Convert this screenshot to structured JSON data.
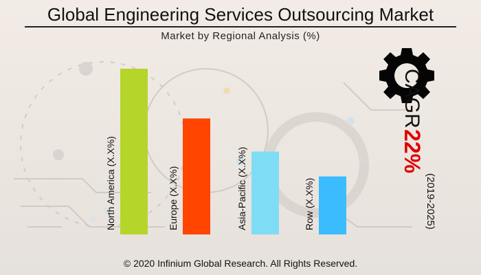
{
  "header": {
    "title": "Global Engineering Services Outsourcing Market",
    "subtitle": "Market by Regional Analysis (%)"
  },
  "chart_data": {
    "type": "bar",
    "title": "Global Engineering Services Outsourcing Market",
    "subtitle": "Market by Regional Analysis (%)",
    "categories": [
      "North America",
      "Europe",
      "Asia-Pacific",
      "Row"
    ],
    "bar_labels": [
      "North America (X.X%)",
      "Europe (X.X%)",
      "Asia-Pacific (X.X%)",
      "Row (X.X%)"
    ],
    "values": [
      100,
      70,
      50,
      35
    ],
    "colors": [
      "#b5d52a",
      "#ff4500",
      "#7fdcf5",
      "#3bbcff"
    ],
    "ylim": [
      0,
      100
    ],
    "grid": false,
    "legend": "none"
  },
  "cagr": {
    "label": "CAGR",
    "value": "22%",
    "period": "(2019-2025)",
    "value_color": "#e00000"
  },
  "footer": {
    "copyright": "© 2020 Infinium Global Research. All Rights Reserved."
  },
  "icons": [
    "gear-icon"
  ]
}
